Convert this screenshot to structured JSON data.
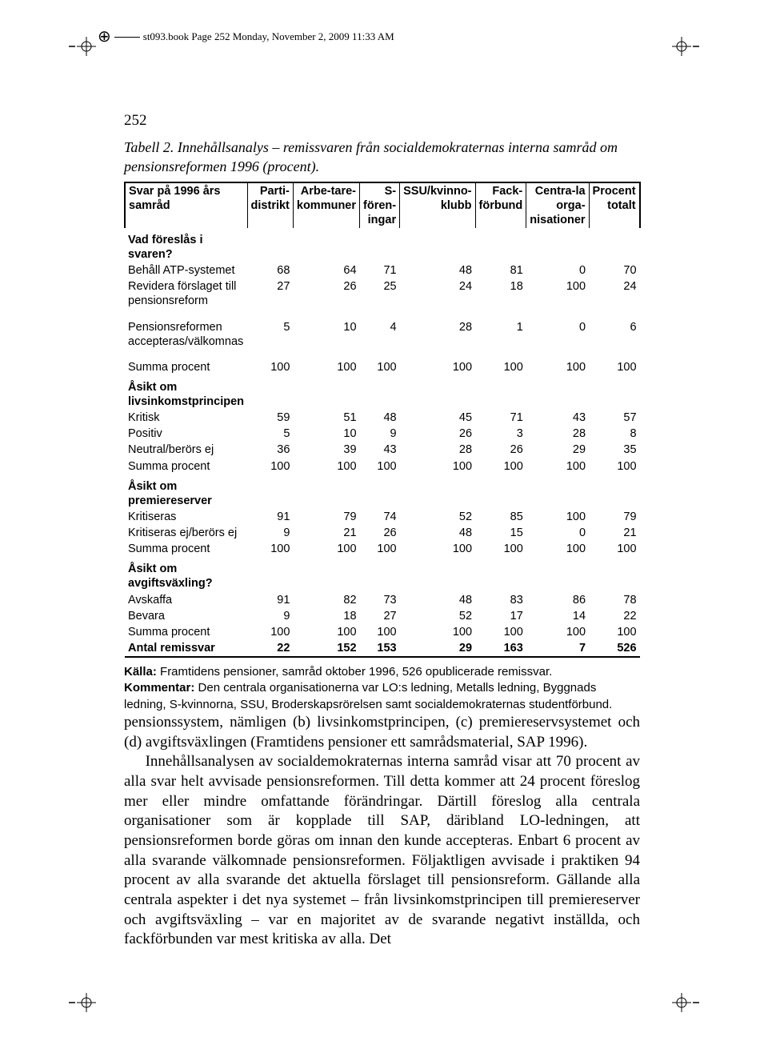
{
  "running_header": {
    "text": "st093.book  Page 252  Monday, November 2, 2009  11:33 AM"
  },
  "page_number": "252",
  "caption": {
    "lead": "Tabell 2.",
    "rest": " Innehållsanalys – remissvaren från socialdemokraternas interna samråd om pensionsreformen 1996 (procent)."
  },
  "table": {
    "columns": [
      "Svar på 1996 års samråd",
      "Parti-distrikt",
      "Arbe-tare-kommuner",
      "S-fören-ingar",
      "SSU/kvinno-klubb",
      "Fack-förbund",
      "Centra-la orga-nisationer",
      "Procent totalt"
    ],
    "col_widths": [
      "190px",
      "65px",
      "65px",
      "65px",
      "65px",
      "65px",
      "65px",
      "65px"
    ],
    "sections": [
      {
        "header": "Vad föreslås i svaren?",
        "rows": [
          {
            "label": "Behåll ATP-systemet",
            "vals": [
              68,
              64,
              71,
              48,
              81,
              0,
              70
            ]
          },
          {
            "label": "Revidera förslaget till pensionsreform",
            "vals": [
              27,
              26,
              25,
              24,
              18,
              100,
              24
            ]
          }
        ]
      },
      {
        "rows": [
          {
            "label": "Pensionsreformen accepteras/välkomnas",
            "vals": [
              5,
              10,
              4,
              28,
              1,
              0,
              6
            ]
          }
        ]
      },
      {
        "rows": [
          {
            "label": "Summa procent",
            "vals": [
              100,
              100,
              100,
              100,
              100,
              100,
              100
            ]
          }
        ]
      },
      {
        "header": "Åsikt om livsinkomstprincipen",
        "rows": [
          {
            "label": "Kritisk",
            "vals": [
              59,
              51,
              48,
              45,
              71,
              43,
              57
            ]
          },
          {
            "label": "Positiv",
            "vals": [
              5,
              10,
              9,
              26,
              3,
              28,
              8
            ]
          },
          {
            "label": "Neutral/berörs ej",
            "vals": [
              36,
              39,
              43,
              28,
              26,
              29,
              35
            ]
          },
          {
            "label": "Summa procent",
            "vals": [
              100,
              100,
              100,
              100,
              100,
              100,
              100
            ]
          }
        ]
      },
      {
        "header": "Åsikt om premiereserver",
        "rows": [
          {
            "label": "Kritiseras",
            "vals": [
              91,
              79,
              74,
              52,
              85,
              100,
              79
            ]
          },
          {
            "label": "Kritiseras ej/berörs ej",
            "vals": [
              9,
              21,
              26,
              48,
              15,
              0,
              21
            ]
          },
          {
            "label": "Summa procent",
            "vals": [
              100,
              100,
              100,
              100,
              100,
              100,
              100
            ]
          }
        ]
      },
      {
        "header": "Åsikt om avgiftsväxling?",
        "rows": [
          {
            "label": "Avskaffa",
            "vals": [
              91,
              82,
              73,
              48,
              83,
              86,
              78
            ]
          },
          {
            "label": "Bevara",
            "vals": [
              9,
              18,
              27,
              52,
              17,
              14,
              22
            ]
          },
          {
            "label": "Summa procent",
            "vals": [
              100,
              100,
              100,
              100,
              100,
              100,
              100
            ]
          }
        ]
      }
    ],
    "total_row": {
      "label": "Antal remissvar",
      "vals": [
        22,
        152,
        153,
        29,
        163,
        7,
        526
      ]
    }
  },
  "source": {
    "kalla_label": "Källa:",
    "kalla_text": " Framtidens pensioner, samråd oktober 1996, 526 opublicerade remissvar.",
    "kommentar_label": "Kommentar:",
    "kommentar_text": " Den centrala organisationerna var LO:s ledning, Metalls ledning, Byggnads ledning, S-kvinnorna, SSU, Broderskapsrörelsen samt socialdemokraternas studentförbund."
  },
  "body": {
    "p1": "pensionssystem, nämligen (b) livsinkomstprincipen, (c) premiereservsystemet och (d) avgiftsväxlingen (Framtidens pensioner ett samrådsmaterial, SAP 1996).",
    "p2": "Innehållsanalysen av socialdemokraternas interna samråd visar att 70 procent av alla svar helt avvisade pensionsreformen. Till detta kommer att 24 procent föreslog mer eller mindre omfattande förändringar. Därtill föreslog alla centrala organisationer som är kopplade till SAP, däribland LO-ledningen, att pensionsreformen borde göras om innan den kunde accepteras. Enbart 6 procent av alla svarande välkomnade pensionsreformen. Följaktligen avvisade i praktiken 94 procent av alla svarande det aktuella förslaget till pensionsreform. Gällande alla centrala aspekter i det nya systemet – från livsinkomstprincipen till premiereserver och avgiftsväxling – var en majoritet av de svarande negativt inställda, och fackförbunden var mest kritiska av alla. Det"
  },
  "colors": {
    "text": "#000000",
    "bg": "#ffffff",
    "rule": "#000000"
  }
}
